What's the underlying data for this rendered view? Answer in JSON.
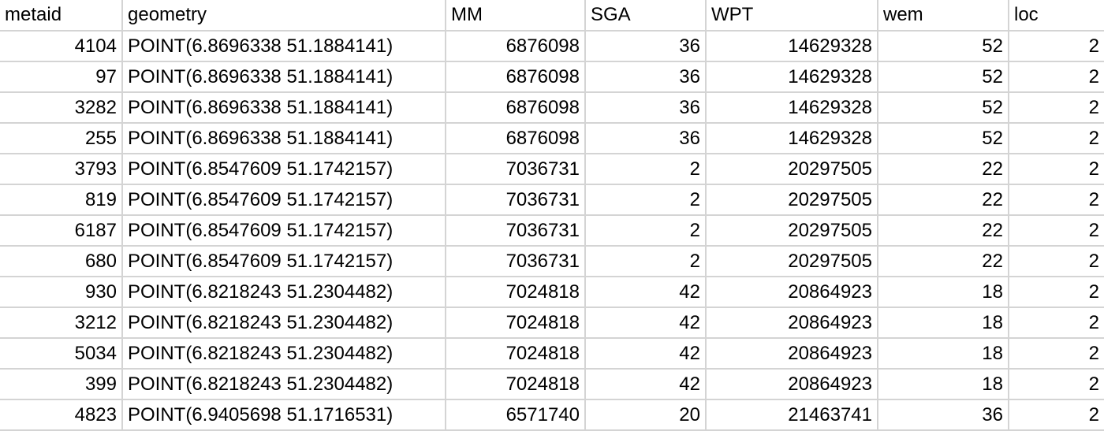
{
  "columns": [
    "metaid",
    "geometry",
    "MM",
    "SGA",
    "WPT",
    "wem",
    "loc"
  ],
  "rows": [
    [
      "4104",
      "POINT(6.8696338 51.1884141)",
      "6876098",
      "36",
      "14629328",
      "52",
      "2"
    ],
    [
      "97",
      "POINT(6.8696338 51.1884141)",
      "6876098",
      "36",
      "14629328",
      "52",
      "2"
    ],
    [
      "3282",
      "POINT(6.8696338 51.1884141)",
      "6876098",
      "36",
      "14629328",
      "52",
      "2"
    ],
    [
      "255",
      "POINT(6.8696338 51.1884141)",
      "6876098",
      "36",
      "14629328",
      "52",
      "2"
    ],
    [
      "3793",
      "POINT(6.8547609 51.1742157)",
      "7036731",
      "2",
      "20297505",
      "22",
      "2"
    ],
    [
      "819",
      "POINT(6.8547609 51.1742157)",
      "7036731",
      "2",
      "20297505",
      "22",
      "2"
    ],
    [
      "6187",
      "POINT(6.8547609 51.1742157)",
      "7036731",
      "2",
      "20297505",
      "22",
      "2"
    ],
    [
      "680",
      "POINT(6.8547609 51.1742157)",
      "7036731",
      "2",
      "20297505",
      "22",
      "2"
    ],
    [
      "930",
      "POINT(6.8218243 51.2304482)",
      "7024818",
      "42",
      "20864923",
      "18",
      "2"
    ],
    [
      "3212",
      "POINT(6.8218243 51.2304482)",
      "7024818",
      "42",
      "20864923",
      "18",
      "2"
    ],
    [
      "5034",
      "POINT(6.8218243 51.2304482)",
      "7024818",
      "42",
      "20864923",
      "18",
      "2"
    ],
    [
      "399",
      "POINT(6.8218243 51.2304482)",
      "7024818",
      "42",
      "20864923",
      "18",
      "2"
    ],
    [
      "4823",
      "POINT(6.9405698 51.1716531)",
      "6571740",
      "20",
      "21463741",
      "36",
      "2"
    ]
  ]
}
